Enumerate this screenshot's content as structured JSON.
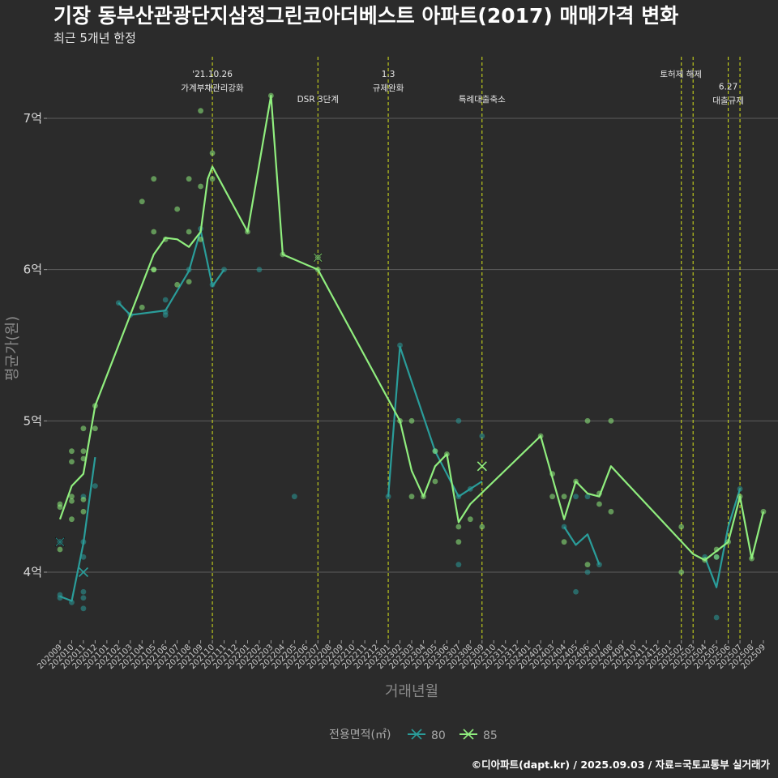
{
  "chart_data": {
    "type": "line",
    "title": "기장 동부산관광단지삼정그린코아더베스트 아파트(2017) 매매가격 변화",
    "subtitle": "최근 5개년 한정",
    "xlabel": "거래년월",
    "ylabel": "평균가(원)",
    "ylim": [
      3.55,
      7.45
    ],
    "yticks": [
      {
        "value": 4,
        "label": "4억"
      },
      {
        "value": 5,
        "label": "5억"
      },
      {
        "value": 6,
        "label": "6억"
      },
      {
        "value": 7,
        "label": "7억"
      }
    ],
    "grid": true,
    "legend_title": "전용면적(㎡)",
    "legend_position": "bottom",
    "categories": [
      "202009",
      "202010",
      "202011",
      "202012",
      "202101",
      "202102",
      "202103",
      "202104",
      "202105",
      "202106",
      "202107",
      "202108",
      "202109",
      "202110",
      "202111",
      "202112",
      "202201",
      "202202",
      "202203",
      "202204",
      "202205",
      "202206",
      "202207",
      "202208",
      "202209",
      "202210",
      "202211",
      "202212",
      "202301",
      "202302",
      "202303",
      "202304",
      "202305",
      "202306",
      "202307",
      "202308",
      "202309",
      "202310",
      "202311",
      "202312",
      "202401",
      "202402",
      "202403",
      "202404",
      "202405",
      "202406",
      "202407",
      "202408",
      "202409",
      "202410",
      "202411",
      "202412",
      "202501",
      "202502",
      "202503",
      "202504",
      "202505",
      "202506",
      "202507",
      "202508",
      "202509"
    ],
    "series": [
      {
        "name": "80",
        "color": "#2a9d9a",
        "line": [
          [
            0,
            3.84
          ],
          [
            1,
            3.81
          ],
          [
            2,
            4.19
          ],
          [
            3,
            4.76
          ],
          null,
          [
            5,
            5.78
          ],
          [
            6,
            5.7
          ],
          [
            9,
            5.73
          ],
          [
            11,
            5.99
          ],
          [
            12,
            6.26
          ],
          [
            13,
            5.89
          ],
          [
            14,
            6.0
          ],
          null,
          [
            28,
            4.5
          ],
          [
            29,
            5.49
          ],
          [
            32,
            4.8
          ],
          [
            34,
            4.5
          ],
          [
            35,
            4.55
          ],
          [
            36,
            4.6
          ],
          null,
          [
            43,
            4.3
          ],
          [
            44,
            4.18
          ],
          [
            45,
            4.25
          ],
          [
            46,
            4.05
          ],
          null,
          [
            55,
            4.1
          ],
          [
            56,
            3.9
          ],
          [
            57,
            4.3
          ],
          [
            58,
            4.55
          ]
        ],
        "points": [
          [
            0,
            3.85
          ],
          [
            0,
            3.83
          ],
          [
            1,
            3.8
          ],
          [
            2,
            4.2
          ],
          [
            2,
            4.1
          ],
          [
            2,
            3.87
          ],
          [
            2,
            3.83
          ],
          [
            2,
            3.76
          ],
          [
            2,
            4.5
          ],
          [
            3,
            4.57
          ],
          [
            5,
            5.78
          ],
          [
            6,
            5.7
          ],
          [
            9,
            5.8
          ],
          [
            9,
            5.72
          ],
          [
            9,
            5.7
          ],
          [
            11,
            6.0
          ],
          [
            12,
            6.27
          ],
          [
            13,
            5.9
          ],
          [
            14,
            6.0
          ],
          [
            17,
            6.0
          ],
          [
            20,
            4.5
          ],
          [
            28,
            4.5
          ],
          [
            29,
            5.5
          ],
          [
            32,
            4.8
          ],
          [
            34,
            5.0
          ],
          [
            34,
            4.5
          ],
          [
            34,
            4.05
          ],
          [
            35,
            4.55
          ],
          [
            36,
            4.9
          ],
          [
            43,
            4.3
          ],
          [
            44,
            4.5
          ],
          [
            44,
            3.87
          ],
          [
            45,
            4.5
          ],
          [
            45,
            4.0
          ],
          [
            46,
            4.05
          ],
          [
            55,
            4.1
          ],
          [
            56,
            4.1
          ],
          [
            56,
            3.7
          ],
          [
            58,
            4.55
          ]
        ],
        "latest": [
          2,
          4.0
        ]
      },
      {
        "name": "85",
        "color": "#90ee7e",
        "line": [
          [
            0,
            4.35
          ],
          [
            1,
            4.57
          ],
          [
            2,
            4.65
          ],
          [
            3,
            5.1
          ],
          [
            8,
            6.1
          ],
          [
            9,
            6.21
          ],
          [
            10,
            6.2
          ],
          [
            11,
            6.15
          ],
          [
            12,
            6.25
          ],
          [
            12.6,
            6.6
          ],
          [
            13,
            6.68
          ],
          [
            16,
            6.25
          ],
          [
            18,
            7.15
          ],
          [
            19,
            6.1
          ],
          [
            22,
            6.0
          ],
          [
            29,
            5.0
          ],
          [
            30,
            4.67
          ],
          [
            31,
            4.5
          ],
          [
            32,
            4.7
          ],
          [
            33,
            4.78
          ],
          [
            34,
            4.33
          ],
          [
            35,
            4.45
          ],
          [
            41,
            4.9
          ],
          [
            43,
            4.35
          ],
          [
            44,
            4.6
          ],
          [
            45,
            4.52
          ],
          [
            46,
            4.5
          ],
          [
            47,
            4.7
          ],
          [
            54,
            4.12
          ],
          [
            55,
            4.08
          ],
          [
            57,
            4.2
          ],
          [
            58,
            4.5
          ],
          [
            59,
            4.09
          ],
          [
            60,
            4.4
          ]
        ],
        "points": [
          [
            0,
            4.45
          ],
          [
            0,
            4.43
          ],
          [
            0,
            4.15
          ],
          [
            1,
            4.8
          ],
          [
            1,
            4.73
          ],
          [
            1,
            4.5
          ],
          [
            1,
            4.47
          ],
          [
            1,
            4.35
          ],
          [
            2,
            4.95
          ],
          [
            2,
            4.8
          ],
          [
            2,
            4.75
          ],
          [
            2,
            4.48
          ],
          [
            2,
            4.4
          ],
          [
            3,
            5.1
          ],
          [
            3,
            4.95
          ],
          [
            7,
            6.45
          ],
          [
            7,
            5.75
          ],
          [
            8,
            6.6
          ],
          [
            8,
            6.25
          ],
          [
            8,
            6.0
          ],
          [
            8,
            6.0
          ],
          [
            9,
            6.2
          ],
          [
            10,
            6.4
          ],
          [
            10,
            5.9
          ],
          [
            11,
            6.6
          ],
          [
            11,
            6.25
          ],
          [
            11,
            5.92
          ],
          [
            12,
            7.05
          ],
          [
            12,
            6.55
          ],
          [
            12,
            6.2
          ],
          [
            13,
            6.77
          ],
          [
            13,
            6.6
          ],
          [
            16,
            6.25
          ],
          [
            18,
            7.15
          ],
          [
            19,
            6.1
          ],
          [
            22,
            6.0
          ],
          [
            29,
            5.0
          ],
          [
            30,
            5.0
          ],
          [
            30,
            4.5
          ],
          [
            31,
            4.5
          ],
          [
            32,
            4.8
          ],
          [
            32,
            4.6
          ],
          [
            33,
            4.78
          ],
          [
            34,
            4.3
          ],
          [
            34,
            4.2
          ],
          [
            35,
            4.35
          ],
          [
            36,
            4.3
          ],
          [
            41,
            4.9
          ],
          [
            42,
            4.65
          ],
          [
            42,
            4.5
          ],
          [
            43,
            4.5
          ],
          [
            43,
            4.2
          ],
          [
            44,
            4.6
          ],
          [
            45,
            5.0
          ],
          [
            45,
            4.05
          ],
          [
            46,
            4.52
          ],
          [
            46,
            4.45
          ],
          [
            47,
            5.0
          ],
          [
            47,
            4.4
          ],
          [
            53,
            4.3
          ],
          [
            53,
            4.0
          ],
          [
            55,
            4.08
          ],
          [
            56,
            4.15
          ],
          [
            56,
            4.1
          ],
          [
            57,
            4.2
          ],
          [
            58,
            4.5
          ],
          [
            59,
            4.09
          ],
          [
            60,
            4.4
          ]
        ],
        "latest": [
          36,
          4.7
        ]
      }
    ],
    "extra_markers": [
      {
        "series": "80",
        "x": 0,
        "y": 4.2,
        "color": "#111111"
      },
      {
        "series": "85",
        "x": 22,
        "y": 6.08,
        "color": "#111111"
      }
    ],
    "events": [
      {
        "x": 13,
        "lines": [
          "'21.10.26",
          "가계부채관리강화"
        ],
        "row": 0
      },
      {
        "x": 22,
        "lines": [
          "DSR 3단계"
        ],
        "row": 1
      },
      {
        "x": 28,
        "lines": [
          "1.3",
          "규제완화"
        ],
        "row": 0
      },
      {
        "x": 36,
        "lines": [
          "특례대출축소"
        ],
        "row": 1
      },
      {
        "x": 53,
        "lines": [],
        "row": 0
      },
      {
        "x": 54,
        "lines": [
          "토허제 해제"
        ],
        "row": 0,
        "label_dx": -15
      },
      {
        "x": 57,
        "lines": [
          "6.27",
          "대출규제"
        ],
        "row": 0.5
      },
      {
        "x": 58,
        "lines": [],
        "row": 0
      }
    ],
    "caption": "©디아파트(dapt.kr) / 2025.09.03 / 자료=국토교통부 실거래가"
  }
}
